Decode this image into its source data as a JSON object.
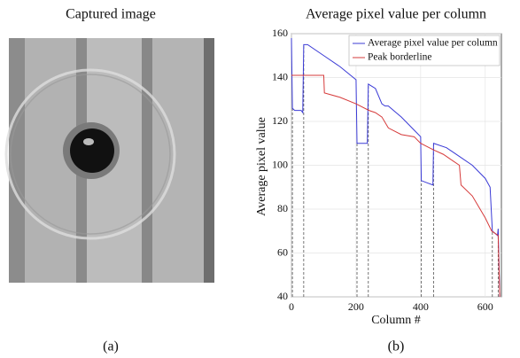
{
  "figure": {
    "left_title": "Captured image",
    "left_label": "(a)",
    "right_label": "(b)"
  },
  "chart_data": {
    "type": "line",
    "title": "Average pixel value per column",
    "x_label": "Column #",
    "y_label": "Average pixel value",
    "xlim": [
      0,
      650
    ],
    "ylim": [
      40,
      160
    ],
    "xticks": [
      0,
      200,
      400,
      600
    ],
    "yticks": [
      40,
      60,
      80,
      100,
      120,
      140,
      160
    ],
    "grid": true,
    "legend": "upper right",
    "series": [
      {
        "name": "Average pixel value per column",
        "color": "#3b3bd6",
        "x": [
          0,
          3,
          10,
          30,
          35,
          38,
          50,
          100,
          150,
          200,
          203,
          210,
          235,
          238,
          260,
          280,
          290,
          300,
          340,
          380,
          400,
          402,
          420,
          438,
          440,
          480,
          520,
          560,
          600,
          615,
          622,
          630,
          638,
          640,
          645
        ],
        "values": [
          158,
          126,
          125,
          125,
          124,
          155,
          155,
          150,
          145,
          139,
          110,
          110,
          110,
          137,
          135,
          128,
          127,
          127,
          122,
          116,
          113,
          93,
          92,
          91,
          110,
          108,
          104,
          100,
          94,
          90,
          70,
          69,
          68,
          71,
          40
        ]
      },
      {
        "name": "Peak borderline",
        "color": "#d63b3b",
        "x": [
          0,
          100,
          102,
          150,
          200,
          240,
          260,
          280,
          300,
          340,
          380,
          400,
          440,
          470,
          480,
          500,
          520,
          525,
          560,
          580,
          600,
          620,
          640,
          645
        ],
        "values": [
          141,
          141,
          133,
          131,
          128,
          125,
          124,
          122,
          117,
          114,
          113,
          110,
          107,
          105,
          104,
          102,
          100,
          91,
          86,
          81,
          76,
          70,
          68,
          40
        ]
      }
    ],
    "vlines": [
      3,
      38,
      203,
      238,
      402,
      440,
      622,
      640
    ]
  }
}
